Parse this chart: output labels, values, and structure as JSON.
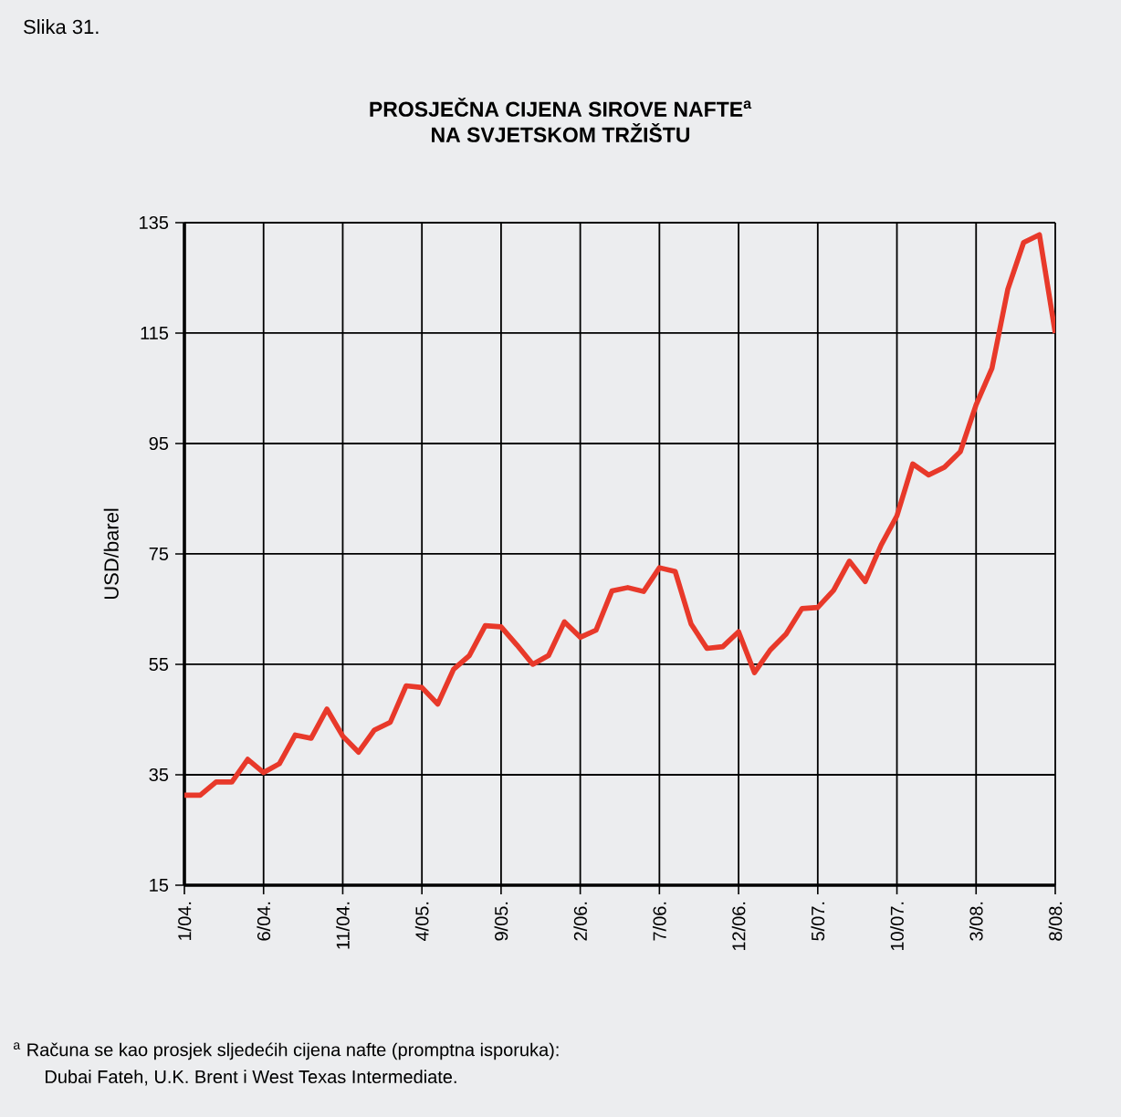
{
  "chart_data": {
    "type": "line",
    "title": "PROSJEČNA CIJENA SIROVE NAFTE$^{a}$",
    "subtitle": "NA SVJETSKOM TRŽIŠTU",
    "ylabel": "USD/barel",
    "annotations": [
      "Slika 31.",
      "$^{a}$ Računa se kao prosjek sljedećih cijena nafte (promptna isporuka):",
      "Dubai Fateh, U.K. Brent i West Texas Intermediate."
    ],
    "categories": [
      "1/04.",
      null,
      null,
      null,
      null,
      "6/04.",
      null,
      null,
      null,
      null,
      "11/04.",
      null,
      null,
      null,
      null,
      "4/05.",
      null,
      null,
      null,
      null,
      "9/05.",
      null,
      null,
      null,
      null,
      "2/06.",
      null,
      null,
      null,
      null,
      "7/06.",
      null,
      null,
      null,
      null,
      "12/06.",
      null,
      null,
      null,
      null,
      "5/07.",
      null,
      null,
      null,
      null,
      "10/07.",
      null,
      null,
      null,
      null,
      "3/08.",
      null,
      null,
      null,
      null,
      "8/08."
    ],
    "series": [
      {
        "color": "#e8392a",
        "values": [
          31.3,
          31.3,
          33.7,
          33.7,
          37.8,
          35.4,
          37.0,
          42.2,
          41.6,
          46.9,
          42.0,
          39.1,
          43.1,
          44.5,
          51.1,
          50.8,
          47.8,
          54.1,
          56.6,
          62.0,
          61.8,
          58.5,
          55.0,
          56.6,
          62.7,
          59.9,
          61.2,
          68.3,
          68.9,
          68.2,
          72.5,
          71.8,
          62.3,
          57.9,
          58.2,
          60.9,
          53.5,
          57.6,
          60.5,
          65.1,
          65.3,
          68.4,
          73.7,
          70.0,
          76.6,
          81.9,
          91.3,
          89.3,
          90.7,
          93.5,
          102.0,
          108.6,
          122.9,
          131.4,
          132.8,
          115.0
        ]
      }
    ],
    "ylim": [
      15,
      135
    ],
    "yticks": [
      15,
      35,
      55,
      75,
      95,
      115,
      135
    ],
    "grid": true,
    "marker": "none",
    "line_style": "solid"
  }
}
